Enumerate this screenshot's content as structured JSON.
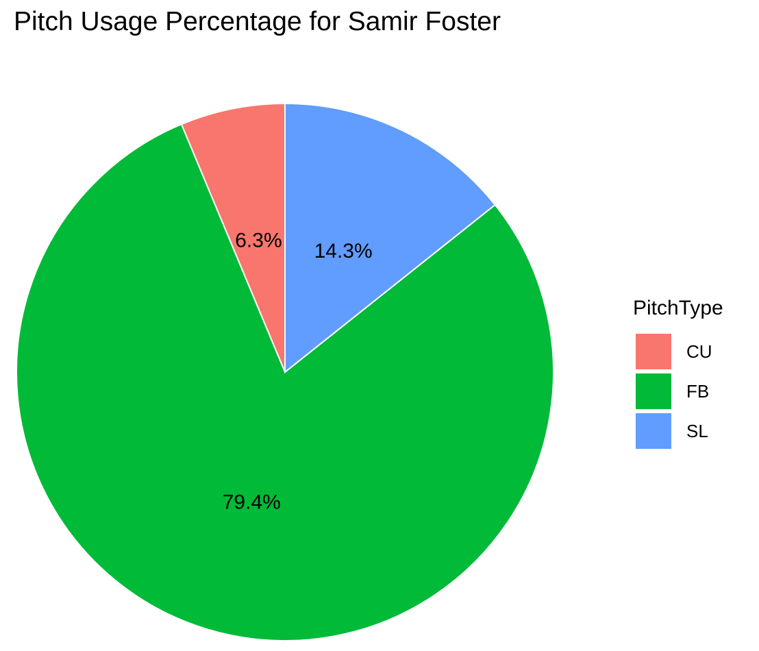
{
  "chart_data": {
    "type": "pie",
    "title": "Pitch Usage Percentage for Samir Foster",
    "legend_title": "PitchType",
    "legend_position": "right",
    "start_angle_deg": 0,
    "direction": "counterclockwise",
    "slices": [
      {
        "category": "CU",
        "value": 6.3,
        "label": "6.3%",
        "color": "#F8766D"
      },
      {
        "category": "FB",
        "value": 79.4,
        "label": "79.4%",
        "color": "#00BA38"
      },
      {
        "category": "SL",
        "value": 14.3,
        "label": "14.3%",
        "color": "#619CFF"
      }
    ]
  }
}
